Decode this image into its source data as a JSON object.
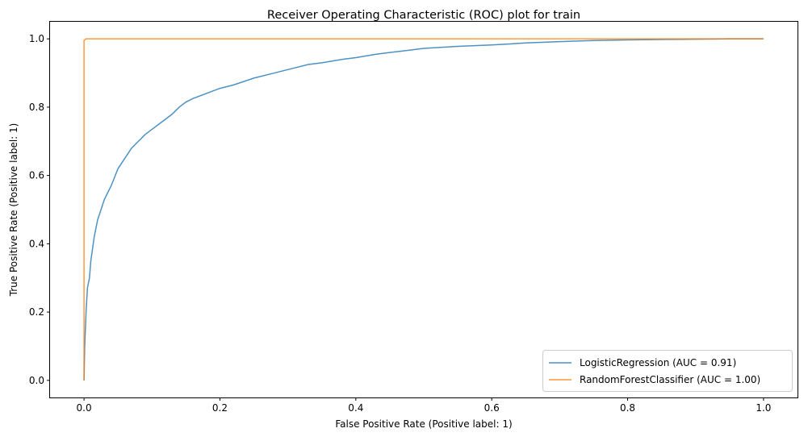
{
  "chart_data": {
    "type": "line",
    "title": "Receiver Operating Characteristic (ROC) plot for train",
    "xlabel": "False Positive Rate (Positive label: 1)",
    "ylabel": "True Positive Rate (Positive label: 1)",
    "xlim": [
      -0.05,
      1.05
    ],
    "ylim": [
      -0.05,
      1.05
    ],
    "xticks": [
      0.0,
      0.2,
      0.4,
      0.6,
      0.8,
      1.0
    ],
    "yticks": [
      0.0,
      0.2,
      0.4,
      0.6,
      0.8,
      1.0
    ],
    "xtick_labels": [
      "0.0",
      "0.2",
      "0.4",
      "0.6",
      "0.8",
      "1.0"
    ],
    "ytick_labels": [
      "0.0",
      "0.2",
      "0.4",
      "0.6",
      "0.8",
      "1.0"
    ],
    "grid": false,
    "legend_position": "lower-right",
    "series": [
      {
        "name": "LogisticRegression (AUC = 0.91)",
        "color": "#1f77b4",
        "x": [
          0,
          0.001,
          0.003,
          0.005,
          0.008,
          0.01,
          0.015,
          0.02,
          0.025,
          0.03,
          0.04,
          0.05,
          0.06,
          0.07,
          0.08,
          0.09,
          0.1,
          0.11,
          0.12,
          0.13,
          0.14,
          0.15,
          0.16,
          0.18,
          0.2,
          0.22,
          0.25,
          0.28,
          0.3,
          0.33,
          0.35,
          0.38,
          0.4,
          0.43,
          0.45,
          0.48,
          0.5,
          0.55,
          0.6,
          0.65,
          0.7,
          0.75,
          0.8,
          0.85,
          0.9,
          0.95,
          1.0
        ],
        "y": [
          0,
          0.1,
          0.2,
          0.27,
          0.3,
          0.35,
          0.42,
          0.47,
          0.5,
          0.53,
          0.57,
          0.62,
          0.65,
          0.68,
          0.7,
          0.72,
          0.735,
          0.75,
          0.765,
          0.78,
          0.8,
          0.815,
          0.825,
          0.84,
          0.855,
          0.865,
          0.885,
          0.9,
          0.91,
          0.925,
          0.93,
          0.94,
          0.945,
          0.955,
          0.96,
          0.967,
          0.972,
          0.978,
          0.982,
          0.988,
          0.992,
          0.995,
          0.997,
          0.998,
          0.999,
          1.0,
          1.0
        ]
      },
      {
        "name": "RandomForestClassifier (AUC = 1.00)",
        "color": "#ff7f0e",
        "x": [
          0,
          0,
          0.001,
          0.003,
          0.005,
          1.0
        ],
        "y": [
          0,
          0.995,
          0.997,
          1.0,
          1.0,
          1.0
        ]
      }
    ]
  }
}
